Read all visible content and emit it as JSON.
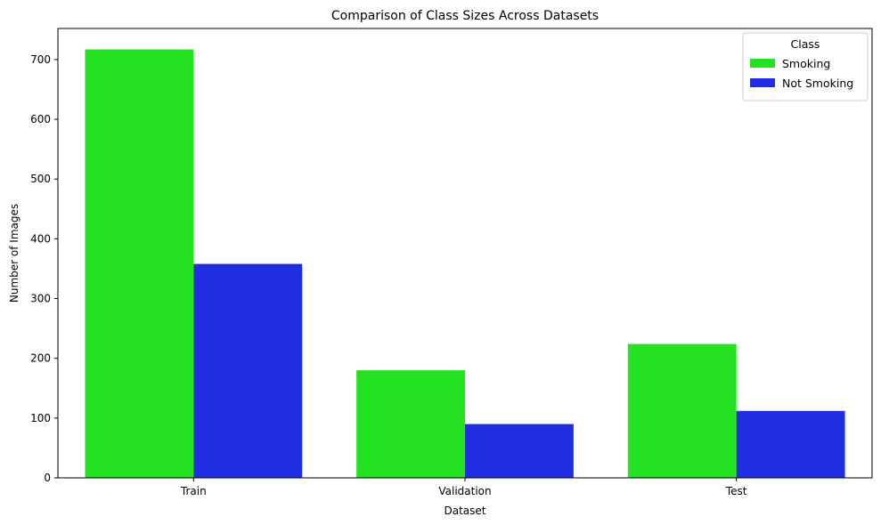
{
  "chart_data": {
    "type": "bar",
    "title": "Comparison of Class Sizes Across Datasets",
    "xlabel": "Dataset",
    "ylabel": "Number of Images",
    "categories": [
      "Train",
      "Validation",
      "Test"
    ],
    "series": [
      {
        "name": "Smoking",
        "color": "#24e121",
        "values": [
          717,
          180,
          224
        ]
      },
      {
        "name": "Not Smoking",
        "color": "#1f2ee1",
        "values": [
          358,
          90,
          112
        ]
      }
    ],
    "ylim": [
      0,
      752
    ],
    "yticks": [
      0,
      100,
      200,
      300,
      400,
      500,
      600,
      700
    ],
    "grid": false,
    "legend": {
      "title": "Class",
      "placement": "top-right"
    }
  }
}
